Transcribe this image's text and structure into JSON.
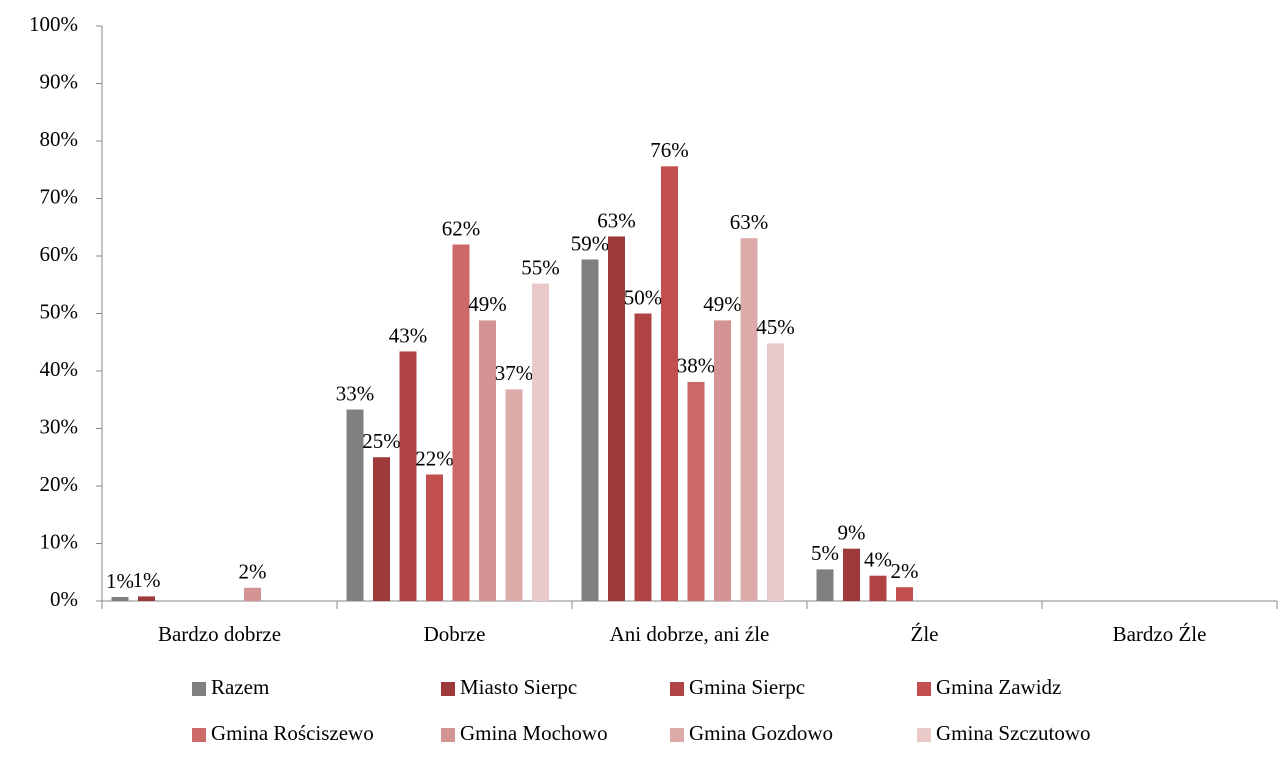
{
  "chart_data": {
    "type": "bar",
    "categories": [
      "Bardzo dobrze",
      "Dobrze",
      "Ani dobrze, ani źle",
      "Źle",
      "Bardzo Źle"
    ],
    "series": [
      {
        "name": "Razem",
        "color": "#808080",
        "values": [
          0.7,
          33.3,
          59.4,
          5.5,
          0
        ],
        "value_labels": [
          "1%",
          "33%",
          "59%",
          "5%",
          null
        ]
      },
      {
        "name": "Miasto Sierpc",
        "color": "#9e3a3a",
        "values": [
          0.8,
          25,
          63.4,
          9.1,
          0
        ],
        "value_labels": [
          "1%",
          "25%",
          "63%",
          "9%",
          null
        ]
      },
      {
        "name": "Gmina Sierpc",
        "color": "#b04444",
        "values": [
          0,
          43.4,
          50,
          4.4,
          0
        ],
        "value_labels": [
          null,
          "43%",
          "50%",
          "4%",
          null
        ]
      },
      {
        "name": "Gmina Zawidz",
        "color": "#c24e4e",
        "values": [
          0,
          22,
          75.6,
          2.4,
          0
        ],
        "value_labels": [
          null,
          "22%",
          "76%",
          "2%",
          null
        ]
      },
      {
        "name": "Gmina Rościszewo",
        "color": "#cc6a6a",
        "values": [
          0,
          62,
          38.1,
          0,
          0
        ],
        "value_labels": [
          null,
          "62%",
          "38%",
          null,
          null
        ]
      },
      {
        "name": "Gmina Mochowo",
        "color": "#d49494",
        "values": [
          2.3,
          48.8,
          48.8,
          0,
          0
        ],
        "value_labels": [
          "2%",
          "49%",
          "49%",
          null,
          null
        ]
      },
      {
        "name": "Gmina Gozdowo",
        "color": "#ddaaaa",
        "values": [
          0,
          36.8,
          63.1,
          0,
          0
        ],
        "value_labels": [
          null,
          "37%",
          "63%",
          null,
          null
        ]
      },
      {
        "name": "Gmina Szczutowo",
        "color": "#e9c9c9",
        "values": [
          0,
          55.2,
          44.8,
          0,
          0
        ],
        "value_labels": [
          null,
          "55%",
          "45%",
          null,
          null
        ]
      }
    ],
    "ylim": [
      0,
      100
    ],
    "yticks": [
      {
        "value": 0,
        "label": "0%"
      },
      {
        "value": 10,
        "label": "10%"
      },
      {
        "value": 20,
        "label": "20%"
      },
      {
        "value": 30,
        "label": "30%"
      },
      {
        "value": 40,
        "label": "40%"
      },
      {
        "value": 50,
        "label": "50%"
      },
      {
        "value": 60,
        "label": "60%"
      },
      {
        "value": 70,
        "label": "70%"
      },
      {
        "value": 80,
        "label": "80%"
      },
      {
        "value": 90,
        "label": "90%"
      },
      {
        "value": 100,
        "label": "100%"
      }
    ],
    "grid": false,
    "legend": "bottom"
  }
}
